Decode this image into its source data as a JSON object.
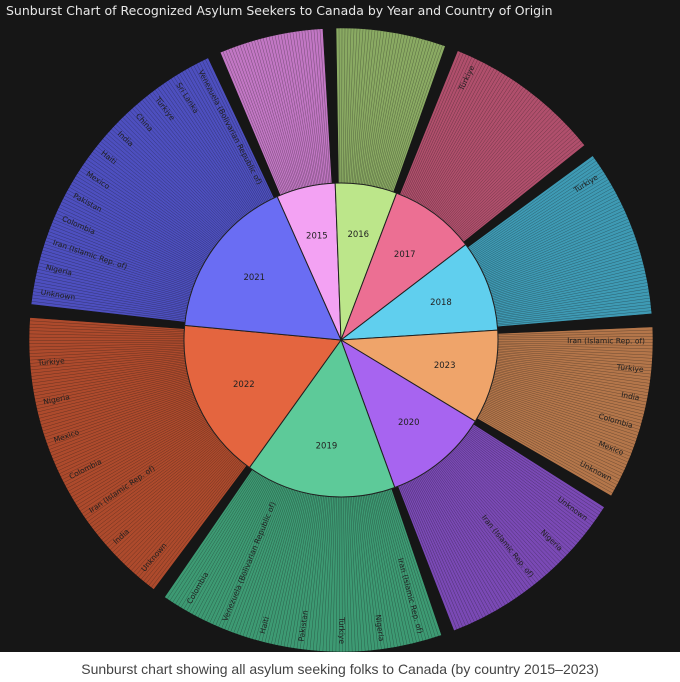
{
  "title": "Sunburst Chart of Recognized Asylum Seekers to Canada by Year and Country of Origin",
  "caption": "Sunburst chart showing all asylum seeking folks to Canada (by country 2015–2023)",
  "chart_data": {
    "type": "sunburst",
    "title": "Sunburst Chart of Recognized Asylum Seekers to Canada by Year and Country of Origin",
    "years": [
      {
        "label": "2015",
        "value": 22,
        "color": "#f3a2f3",
        "outerColor": "#c277c4"
      },
      {
        "label": "2016",
        "value": 23,
        "color": "#bce68a",
        "outerColor": "#8aaa63"
      },
      {
        "label": "2017",
        "value": 32,
        "color": "#ec6f93",
        "outerColor": "#b04f6c"
      },
      {
        "label": "2018",
        "value": 34,
        "color": "#60cfee",
        "outerColor": "#3e9ab4"
      },
      {
        "label": "2023",
        "value": 35,
        "color": "#efa46a",
        "outerColor": "#b4764a"
      },
      {
        "label": "2020",
        "value": 39,
        "color": "#a764f0",
        "outerColor": "#7a49b5"
      },
      {
        "label": "2019",
        "value": 56,
        "color": "#5dca99",
        "outerColor": "#3d9a73"
      },
      {
        "label": "2022",
        "value": 60,
        "color": "#e4653f",
        "outerColor": "#ad4a2c"
      },
      {
        "label": "2021",
        "value": 61,
        "color": "#6a6df3",
        "outerColor": "#4d4fbf"
      }
    ],
    "countries": {
      "2021": [
        "Unknown",
        "Nigeria",
        "Iran (Islamic Rep. of)",
        "Colombia",
        "Pakistan",
        "Mexico",
        "Haiti",
        "India",
        "China",
        "Türkiye",
        "Sri Lanka",
        "Venezuela (Bolivarian Republic of)"
      ],
      "2022": [
        "Unknown",
        "India",
        "Iran (Islamic Rep. of)",
        "Colombia",
        "Mexico",
        "Nigeria",
        "Türkiye"
      ],
      "2019": [
        "Iran (Islamic Rep. of)",
        "Nigeria",
        "Türkiye",
        "Pakistan",
        "Haiti",
        "Venezuela (Bolivarian Republic of)",
        "Colombia"
      ],
      "2020": [
        "Unknown",
        "Nigeria",
        "Iran (Islamic Rep. of)"
      ],
      "2023": [
        "Iran (Islamic Rep. of)",
        "Türkiye",
        "India",
        "Colombia",
        "Mexico",
        "Unknown"
      ],
      "2018": [
        "Türkiye"
      ],
      "2017": [
        "Türkiye"
      ],
      "2016": [],
      "2015": []
    }
  }
}
